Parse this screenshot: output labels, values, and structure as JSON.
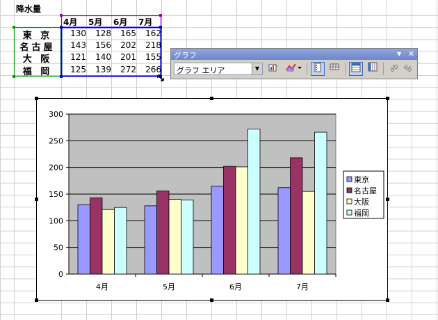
{
  "sheet": {
    "title": "降水量",
    "months": [
      "4月",
      "5月",
      "6月",
      "7月"
    ],
    "cities": [
      "東 京",
      "名古屋",
      "大 阪",
      "福 岡"
    ],
    "table": [
      [
        130,
        128,
        165,
        162
      ],
      [
        143,
        156,
        202,
        218
      ],
      [
        121,
        140,
        201,
        155
      ],
      [
        125,
        139,
        272,
        266
      ]
    ]
  },
  "toolbar": {
    "title": "グラフ",
    "minimize_glyph": "▼",
    "close_glyph": "✕",
    "object_select_value": "グラフ エリア",
    "buttons": [
      {
        "icon": "format-chart-area-icon"
      },
      {
        "icon": "chart-type-icon"
      },
      {
        "icon": "legend-icon",
        "active": true
      },
      {
        "icon": "data-table-icon"
      },
      {
        "icon": "by-row-icon",
        "active": true
      },
      {
        "icon": "by-column-icon"
      },
      {
        "icon": "angle-text-down-icon"
      },
      {
        "icon": "angle-text-up-icon"
      }
    ]
  },
  "chart_data": {
    "type": "bar",
    "categories": [
      "4月",
      "5月",
      "6月",
      "7月"
    ],
    "series": [
      {
        "name": "東京",
        "color": "#9999ff",
        "values": [
          130,
          128,
          165,
          162
        ]
      },
      {
        "name": "名古屋",
        "color": "#993366",
        "values": [
          143,
          156,
          202,
          218
        ]
      },
      {
        "name": "大阪",
        "color": "#ffffcc",
        "values": [
          121,
          140,
          201,
          155
        ]
      },
      {
        "name": "福岡",
        "color": "#ccffff",
        "values": [
          125,
          139,
          272,
          266
        ]
      }
    ],
    "ylim": [
      0,
      300
    ],
    "yticks": [
      0,
      50,
      100,
      150,
      200,
      250,
      300
    ],
    "plot_background": "#c0c0c0",
    "grid": true,
    "legend_position": "right"
  }
}
